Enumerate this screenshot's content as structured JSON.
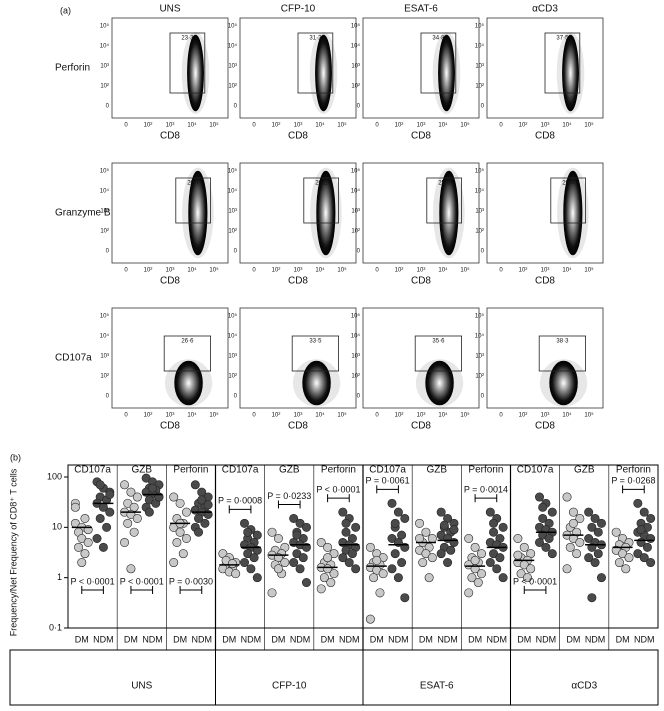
{
  "flow_panel": {
    "label": "(a)",
    "columns": [
      "UNS",
      "CFP-10",
      "ESAT-6",
      "αCD3"
    ],
    "x_label": "CD8",
    "x_ticks": [
      "0",
      "10²",
      "10³",
      "10⁴",
      "10⁵"
    ],
    "y_ticks": [
      "0",
      "10²",
      "10³",
      "10⁴",
      "10⁵"
    ],
    "rows": [
      {
        "name": "Perforin",
        "gates": [
          "23·3",
          "31·2",
          "34·8",
          "37·5"
        ]
      },
      {
        "name": "Granzyme B",
        "gates": [
          "20·7",
          "26·2",
          "25·9",
          "29·4"
        ]
      },
      {
        "name": "CD107a",
        "gates": [
          "26·6",
          "33·5",
          "35·6",
          "38·3"
        ]
      }
    ]
  },
  "chart_data": {
    "type": "strip",
    "label": "(b)",
    "y_label": "Frequency/Net Frequency of CD8⁺ T cells",
    "log_scale": true,
    "ylim": [
      0.1,
      100
    ],
    "yticks": [
      {
        "value": 0.1,
        "label": "0·1"
      },
      1,
      10,
      100
    ],
    "groups": [
      {
        "name": "UNS",
        "panels": [
          {
            "name": "CD107a",
            "p_label": "P < 0·0001",
            "series": [
              {
                "name": "DM",
                "color": "#c8c8c8",
                "median": 10,
                "values": [
                  12,
                  10,
                  9,
                  8,
                  15,
                  30,
                  6,
                  5,
                  4,
                  3,
                  25,
                  2
                ]
              },
              {
                "name": "NDM",
                "color": "#4a4a4a",
                "median": 30,
                "values": [
                  80,
                  60,
                  50,
                  40,
                  35,
                  30,
                  25,
                  20,
                  15,
                  10,
                  6,
                  4,
                  45,
                  70
                ]
              }
            ]
          },
          {
            "name": "GZB",
            "p_label": "P < 0·0001",
            "series": [
              {
                "name": "DM",
                "color": "#c8c8c8",
                "median": 20,
                "values": [
                  70,
                  50,
                  40,
                  30,
                  25,
                  20,
                  18,
                  15,
                  12,
                  8,
                  5,
                  1.5
                ]
              },
              {
                "name": "NDM",
                "color": "#4a4a4a",
                "median": 45,
                "values": [
                  95,
                  80,
                  70,
                  60,
                  55,
                  50,
                  45,
                  40,
                  35,
                  30,
                  25,
                  60,
                  40,
                  20
                ]
              }
            ]
          },
          {
            "name": "Perforin",
            "p_label": "P = 0·0030",
            "series": [
              {
                "name": "DM",
                "color": "#c8c8c8",
                "median": 12,
                "values": [
                  40,
                  30,
                  20,
                  15,
                  12,
                  10,
                  8,
                  6,
                  5,
                  3,
                  2,
                  12
                ]
              },
              {
                "name": "NDM",
                "color": "#4a4a4a",
                "median": 20,
                "values": [
                  70,
                  50,
                  40,
                  30,
                  25,
                  22,
                  20,
                  18,
                  15,
                  12,
                  10,
                  35,
                  28,
                  8
                ]
              }
            ]
          }
        ]
      },
      {
        "name": "CFP-10",
        "panels": [
          {
            "name": "CD107a",
            "p_label": "P = 0·0008",
            "series": [
              {
                "name": "DM",
                "color": "#c8c8c8",
                "median": 1.8,
                "values": [
                  3,
                  2.5,
                  2,
                  1.8,
                  1.6,
                  1.5,
                  1.3,
                  1.2,
                  2.2,
                  1.9
                ]
              },
              {
                "name": "NDM",
                "color": "#4a4a4a",
                "median": 4,
                "values": [
                  12,
                  9,
                  7,
                  6,
                  5,
                  4.5,
                  4,
                  3.5,
                  3,
                  2.5,
                  2,
                  1.5,
                  1,
                  8
                ]
              }
            ]
          },
          {
            "name": "GZB",
            "p_label": "P = 0·0233",
            "series": [
              {
                "name": "DM",
                "color": "#c8c8c8",
                "median": 2.8,
                "values": [
                  8,
                  6,
                  4,
                  3.5,
                  3,
                  2.8,
                  2.5,
                  2,
                  1.8,
                  1.2,
                  0.5,
                  1.5
                ]
              },
              {
                "name": "NDM",
                "color": "#4a4a4a",
                "median": 4.5,
                "values": [
                  15,
                  12,
                  10,
                  8,
                  6,
                  5,
                  4.5,
                  4,
                  3,
                  2.5,
                  2,
                  1.5,
                  0.8,
                  7
                ]
              }
            ]
          },
          {
            "name": "Perforin",
            "p_label": "P < 0·0001",
            "series": [
              {
                "name": "DM",
                "color": "#c8c8c8",
                "median": 1.6,
                "values": [
                  5,
                  4,
                  3,
                  2,
                  1.8,
                  1.6,
                  1.5,
                  1.2,
                  1,
                  0.8,
                  0.6,
                  2.5
                ]
              },
              {
                "name": "NDM",
                "color": "#4a4a4a",
                "median": 4.5,
                "values": [
                  20,
                  15,
                  10,
                  8,
                  6,
                  5,
                  4.5,
                  4,
                  3.5,
                  3,
                  2.5,
                  2,
                  1.5,
                  12
                ]
              }
            ]
          }
        ]
      },
      {
        "name": "ESAT-6",
        "panels": [
          {
            "name": "CD107a",
            "p_label": "P = 0·0061",
            "series": [
              {
                "name": "DM",
                "color": "#c8c8c8",
                "median": 1.7,
                "values": [
                  4,
                  3,
                  2.5,
                  2,
                  1.8,
                  1.6,
                  1.4,
                  1.2,
                  1,
                  0.5,
                  0.15,
                  2.2
                ]
              },
              {
                "name": "NDM",
                "color": "#4a4a4a",
                "median": 4.5,
                "values": [
                  30,
                  20,
                  15,
                  10,
                  7,
                  6,
                  5,
                  4,
                  3,
                  2,
                  1.5,
                  1,
                  0.4,
                  12
                ]
              }
            ]
          },
          {
            "name": "GZB",
            "series": [
              {
                "name": "DM",
                "color": "#c8c8c8",
                "median": 5,
                "values": [
                  12,
                  8,
                  6,
                  5,
                  4,
                  3.5,
                  3,
                  2.5,
                  2,
                  1,
                  6
                ]
              },
              {
                "name": "NDM",
                "color": "#4a4a4a",
                "median": 5.5,
                "values": [
                  20,
                  15,
                  12,
                  10,
                  8,
                  7,
                  6,
                  5,
                  4,
                  3.5,
                  3,
                  2,
                  9,
                  11
                ]
              }
            ]
          },
          {
            "name": "Perforin",
            "p_label": "P = 0·0014",
            "series": [
              {
                "name": "DM",
                "color": "#c8c8c8",
                "median": 1.7,
                "values": [
                  6,
                  4,
                  3,
                  2.5,
                  2,
                  1.8,
                  1.5,
                  1.2,
                  1,
                  0.8,
                  0.5,
                  2.2
                ]
              },
              {
                "name": "NDM",
                "color": "#4a4a4a",
                "median": 4,
                "values": [
                  20,
                  15,
                  10,
                  8,
                  6,
                  5,
                  4.5,
                  4,
                  3,
                  2.5,
                  2,
                  1.5,
                  1,
                  12
                ]
              }
            ]
          }
        ]
      },
      {
        "name": "αCD3",
        "panels": [
          {
            "name": "CD107a",
            "p_label": "P < 0·0001",
            "series": [
              {
                "name": "DM",
                "color": "#c8c8c8",
                "median": 2.2,
                "values": [
                  6,
                  4,
                  3,
                  2.5,
                  2.2,
                  2,
                  1.8,
                  1.5,
                  1.2,
                  1,
                  2.8
                ]
              },
              {
                "name": "NDM",
                "color": "#4a4a4a",
                "median": 8,
                "values": [
                  40,
                  30,
                  20,
                  15,
                  12,
                  10,
                  9,
                  8,
                  7,
                  6,
                  5,
                  4,
                  3,
                  25
                ]
              }
            ]
          },
          {
            "name": "GZB",
            "series": [
              {
                "name": "DM",
                "color": "#c8c8c8",
                "median": 7,
                "values": [
                  40,
                  20,
                  15,
                  10,
                  8,
                  7,
                  6,
                  5,
                  4,
                  3,
                  1.5,
                  12
                ]
              },
              {
                "name": "NDM",
                "color": "#4a4a4a",
                "median": 4.5,
                "values": [
                  20,
                  15,
                  12,
                  10,
                  8,
                  6,
                  5,
                  4.5,
                  4,
                  3,
                  2.5,
                  2,
                  1,
                  0.4
                ]
              }
            ]
          },
          {
            "name": "Perforin",
            "p_label": "P = 0·0268",
            "series": [
              {
                "name": "DM",
                "color": "#c8c8c8",
                "median": 4,
                "values": [
                  8,
                  6,
                  5,
                  4.5,
                  4,
                  3.5,
                  3,
                  2.5,
                  2,
                  1.5
                ]
              },
              {
                "name": "NDM",
                "color": "#4a4a4a",
                "median": 5.5,
                "values": [
                  30,
                  20,
                  15,
                  12,
                  10,
                  8,
                  7,
                  6,
                  5,
                  4,
                  3,
                  2.5,
                  2,
                  9
                ]
              }
            ]
          }
        ]
      }
    ]
  }
}
